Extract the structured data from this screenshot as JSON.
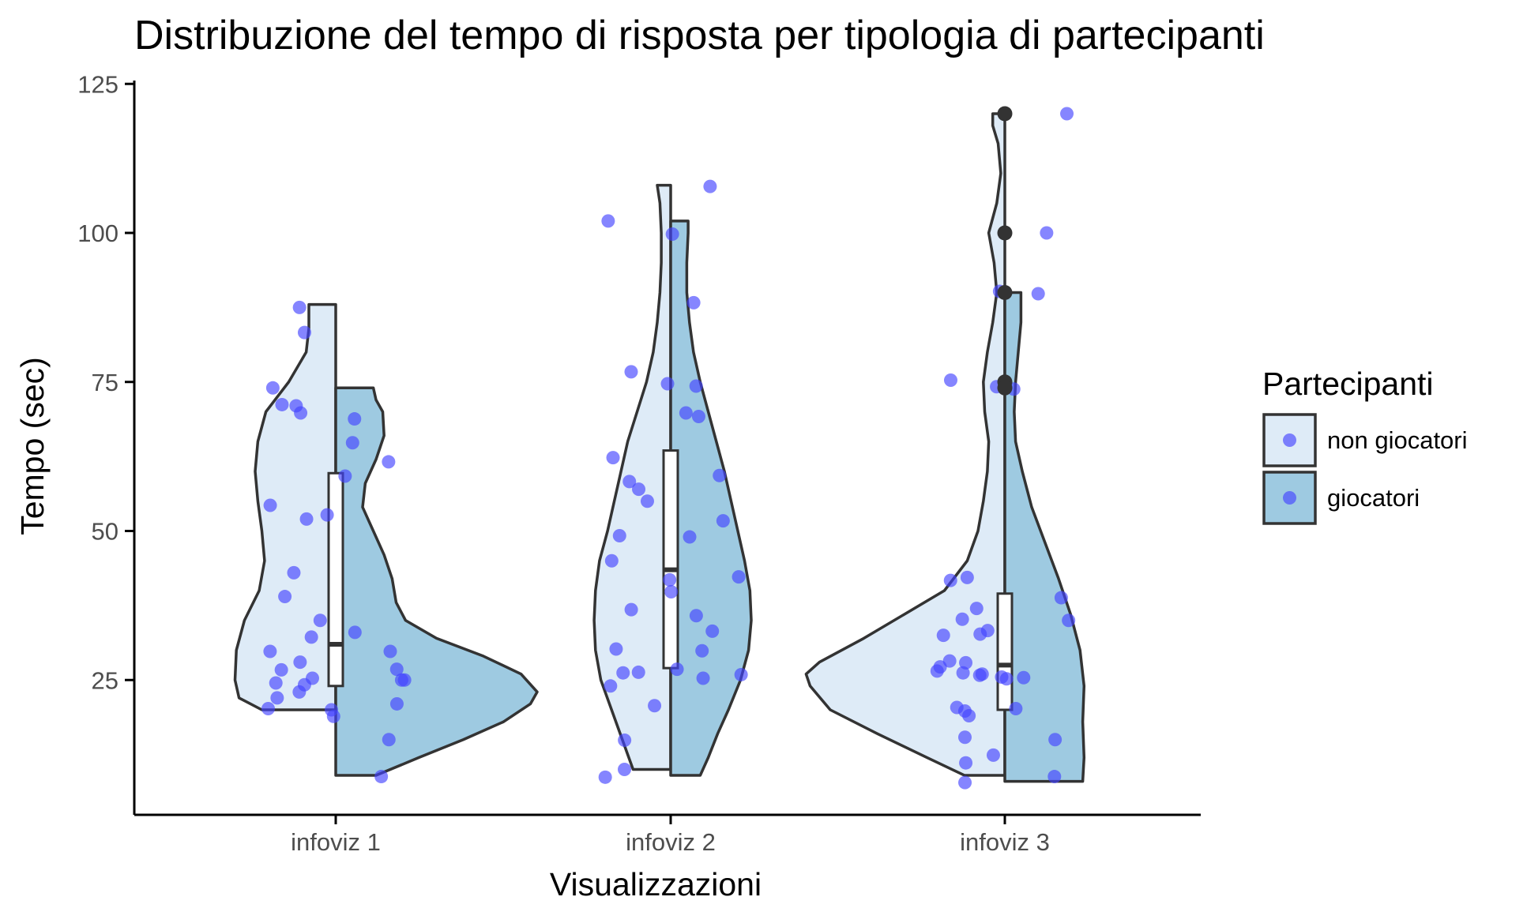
{
  "chart_data": {
    "type": "violin",
    "title": "Distribuzione del tempo di risposta per tipologia di partecipanti",
    "xlabel": "Visualizzazioni",
    "ylabel": "Tempo (sec)",
    "categories": [
      "infoviz 1",
      "infoviz 2",
      "infoviz 3"
    ],
    "y_ticks": [
      25,
      50,
      75,
      100,
      125
    ],
    "ylim": [
      0,
      125
    ],
    "grid": false,
    "legend": {
      "title": "Partecipanti",
      "position": "right",
      "entries": [
        {
          "label": "non giocatori",
          "fill": "#deebf7"
        },
        {
          "label": "giocatori",
          "fill": "#9ecae1"
        }
      ]
    },
    "colors": {
      "non_giocatori_fill": "#deebf7",
      "giocatori_fill": "#9ecae1",
      "outline": "#333333",
      "point": "#4444ff",
      "outlier": "#333333"
    },
    "series": [
      {
        "name": "non giocatori",
        "side": "left",
        "violins": [
          {
            "category": "infoviz 1",
            "range": [
              20,
              88
            ],
            "density": [
              [
                20,
                0.55
              ],
              [
                22,
                0.72
              ],
              [
                25,
                0.75
              ],
              [
                30,
                0.74
              ],
              [
                35,
                0.68
              ],
              [
                40,
                0.57
              ],
              [
                45,
                0.53
              ],
              [
                50,
                0.55
              ],
              [
                55,
                0.58
              ],
              [
                60,
                0.6
              ],
              [
                65,
                0.58
              ],
              [
                70,
                0.52
              ],
              [
                75,
                0.35
              ],
              [
                80,
                0.22
              ],
              [
                84,
                0.2
              ],
              [
                88,
                0.2
              ]
            ]
          },
          {
            "category": "infoviz 2",
            "range": [
              10,
              108
            ],
            "density": [
              [
                10,
                0.28
              ],
              [
                15,
                0.36
              ],
              [
                20,
                0.44
              ],
              [
                25,
                0.52
              ],
              [
                30,
                0.56
              ],
              [
                35,
                0.57
              ],
              [
                40,
                0.56
              ],
              [
                45,
                0.53
              ],
              [
                50,
                0.47
              ],
              [
                55,
                0.42
              ],
              [
                60,
                0.37
              ],
              [
                65,
                0.32
              ],
              [
                70,
                0.25
              ],
              [
                75,
                0.18
              ],
              [
                80,
                0.13
              ],
              [
                85,
                0.1
              ],
              [
                90,
                0.08
              ],
              [
                95,
                0.07
              ],
              [
                100,
                0.07
              ],
              [
                105,
                0.08
              ],
              [
                108,
                0.1
              ]
            ]
          },
          {
            "category": "infoviz 3",
            "range": [
              9,
              120
            ],
            "density": [
              [
                9,
                0.3
              ],
              [
                12,
                0.58
              ],
              [
                16,
                0.95
              ],
              [
                20,
                1.3
              ],
              [
                24,
                1.45
              ],
              [
                26,
                1.48
              ],
              [
                28,
                1.38
              ],
              [
                32,
                1.05
              ],
              [
                36,
                0.75
              ],
              [
                40,
                0.45
              ],
              [
                45,
                0.28
              ],
              [
                50,
                0.2
              ],
              [
                55,
                0.16
              ],
              [
                60,
                0.13
              ],
              [
                65,
                0.12
              ],
              [
                70,
                0.15
              ],
              [
                75,
                0.16
              ],
              [
                80,
                0.13
              ],
              [
                85,
                0.09
              ],
              [
                90,
                0.06
              ],
              [
                95,
                0.08
              ],
              [
                100,
                0.12
              ],
              [
                105,
                0.06
              ],
              [
                110,
                0.03
              ],
              [
                115,
                0.05
              ],
              [
                118,
                0.09
              ],
              [
                120,
                0.09
              ]
            ]
          }
        ],
        "points": [
          {
            "category": "infoviz 1",
            "y": [
              87.5,
              83.3,
              74,
              71.2,
              71,
              69.8,
              54.3,
              52.7,
              52,
              43,
              39,
              35,
              32.2,
              29.8,
              28,
              26.7,
              25.3,
              24.5,
              24.2,
              23,
              22,
              20.2,
              20,
              18.9
            ]
          },
          {
            "category": "infoviz 2",
            "y": [
              102,
              76.7,
              74.7,
              62.3,
              58.3,
              57,
              55,
              49.2,
              45,
              41.8,
              36.8,
              30.2,
              26.3,
              26.2,
              24,
              20.7,
              14.9,
              10,
              8.7
            ]
          },
          {
            "category": "infoviz 3",
            "y": [
              90.2,
              75.3,
              74.2,
              42.2,
              41.7,
              37,
              35.2,
              33.3,
              32.7,
              32.5,
              28.2,
              27.9,
              27.2,
              26.5,
              26.2,
              26,
              25.8,
              25.5,
              20.4,
              19.8,
              19,
              15.4,
              12.4,
              11.1,
              7.8
            ]
          }
        ]
      },
      {
        "name": "giocatori",
        "side": "right",
        "violins": [
          {
            "category": "infoviz 1",
            "range": [
              9,
              74
            ],
            "density": [
              [
                9,
                0.3
              ],
              [
                12,
                0.62
              ],
              [
                15,
                0.95
              ],
              [
                18,
                1.25
              ],
              [
                21,
                1.45
              ],
              [
                23,
                1.5
              ],
              [
                26,
                1.38
              ],
              [
                29,
                1.1
              ],
              [
                32,
                0.75
              ],
              [
                35,
                0.52
              ],
              [
                38,
                0.45
              ],
              [
                42,
                0.42
              ],
              [
                46,
                0.36
              ],
              [
                50,
                0.28
              ],
              [
                54,
                0.2
              ],
              [
                58,
                0.22
              ],
              [
                62,
                0.3
              ],
              [
                66,
                0.36
              ],
              [
                70,
                0.35
              ],
              [
                72,
                0.3
              ],
              [
                74,
                0.28
              ]
            ]
          },
          {
            "category": "infoviz 2",
            "range": [
              9,
              102
            ],
            "density": [
              [
                9,
                0.22
              ],
              [
                12,
                0.28
              ],
              [
                16,
                0.35
              ],
              [
                20,
                0.43
              ],
              [
                25,
                0.52
              ],
              [
                30,
                0.58
              ],
              [
                35,
                0.6
              ],
              [
                40,
                0.59
              ],
              [
                45,
                0.55
              ],
              [
                50,
                0.5
              ],
              [
                55,
                0.45
              ],
              [
                60,
                0.4
              ],
              [
                65,
                0.34
              ],
              [
                70,
                0.28
              ],
              [
                75,
                0.22
              ],
              [
                80,
                0.17
              ],
              [
                85,
                0.14
              ],
              [
                90,
                0.12
              ],
              [
                95,
                0.12
              ],
              [
                100,
                0.13
              ],
              [
                102,
                0.13
              ]
            ]
          },
          {
            "category": "infoviz 3",
            "range": [
              8,
              90
            ],
            "density": [
              [
                8,
                0.58
              ],
              [
                12,
                0.59
              ],
              [
                18,
                0.58
              ],
              [
                24,
                0.59
              ],
              [
                30,
                0.56
              ],
              [
                36,
                0.49
              ],
              [
                42,
                0.4
              ],
              [
                48,
                0.3
              ],
              [
                54,
                0.2
              ],
              [
                60,
                0.13
              ],
              [
                65,
                0.08
              ],
              [
                70,
                0.07
              ],
              [
                75,
                0.08
              ],
              [
                80,
                0.1
              ],
              [
                85,
                0.12
              ],
              [
                88,
                0.12
              ],
              [
                90,
                0.12
              ]
            ]
          }
        ],
        "points": [
          {
            "category": "infoviz 1",
            "y": [
              68.8,
              64.8,
              61.6,
              59.2,
              33,
              29.8,
              26.8,
              25,
              25,
              21,
              15,
              8.8
            ]
          },
          {
            "category": "infoviz 2",
            "y": [
              107.8,
              99.8,
              88.3,
              74.3,
              69.8,
              69.2,
              59.3,
              51.7,
              49,
              42.3,
              39.8,
              35.8,
              33.2,
              29.9,
              26.8,
              25.9,
              25.3
            ]
          },
          {
            "category": "infoviz 3",
            "y": [
              120,
              100,
              89.8,
              73.8,
              38.8,
              35,
              25.4,
              25.2,
              20.2,
              15,
              8.8
            ]
          }
        ]
      }
    ],
    "boxes": [
      {
        "category": "infoviz 1",
        "q1": 24,
        "median": 31,
        "q3": 59.7,
        "whisker_low": 20,
        "whisker_high": 88,
        "outliers": []
      },
      {
        "category": "infoviz 2",
        "q1": 27,
        "median": 43.5,
        "q3": 63.5,
        "whisker_low": 9,
        "whisker_high": 108,
        "outliers": []
      },
      {
        "category": "infoviz 3",
        "q1": 20,
        "median": 27.5,
        "q3": 39.5,
        "whisker_low": 8,
        "whisker_high": 90,
        "outliers": [
          120,
          100,
          90,
          75,
          74
        ]
      }
    ]
  }
}
